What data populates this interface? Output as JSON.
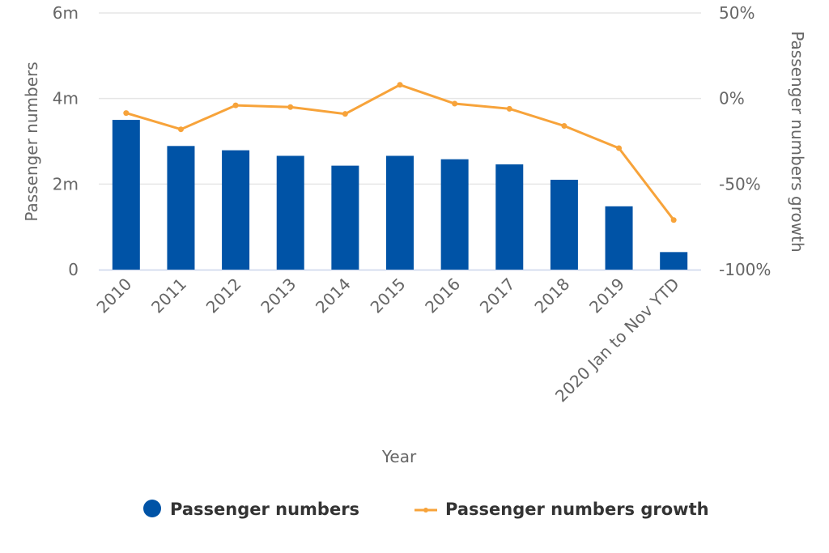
{
  "chart_data": {
    "type": "bar",
    "categories": [
      "2010",
      "2011",
      "2012",
      "2013",
      "2014",
      "2015",
      "2016",
      "2017",
      "2018",
      "2019",
      "2020 Jan to Nov YTD"
    ],
    "series": [
      {
        "name": "Passenger numbers",
        "type": "bar",
        "axis": "left",
        "color": "#0053a6",
        "values": [
          3500000,
          2890000,
          2790000,
          2660000,
          2430000,
          2660000,
          2580000,
          2460000,
          2100000,
          1480000,
          410000
        ]
      },
      {
        "name": "Passenger numbers growth",
        "type": "line",
        "axis": "right",
        "color": "#f7a33a",
        "values": [
          -8.5,
          -18,
          -4,
          -5,
          -9,
          8,
          -3,
          -6,
          -16,
          -29,
          -71
        ]
      }
    ],
    "xlabel": "Year",
    "ylabel": "Passenger numbers",
    "y2label": "Passenger numbers growth",
    "ylim": [
      0,
      6000000
    ],
    "y2lim": [
      -100,
      50
    ],
    "yticks": [
      {
        "value": 0,
        "label": "0"
      },
      {
        "value": 2000000,
        "label": "2m"
      },
      {
        "value": 4000000,
        "label": "4m"
      },
      {
        "value": 6000000,
        "label": "6m"
      }
    ],
    "y2ticks": [
      {
        "value": -100,
        "label": "-100%"
      },
      {
        "value": -50,
        "label": "-50%"
      },
      {
        "value": 0,
        "label": "0%"
      },
      {
        "value": 50,
        "label": "50%"
      }
    ],
    "grid": true,
    "legend": "bottom",
    "gridColor": "#e6e6e6",
    "axisColor": "#ccd6eb"
  }
}
